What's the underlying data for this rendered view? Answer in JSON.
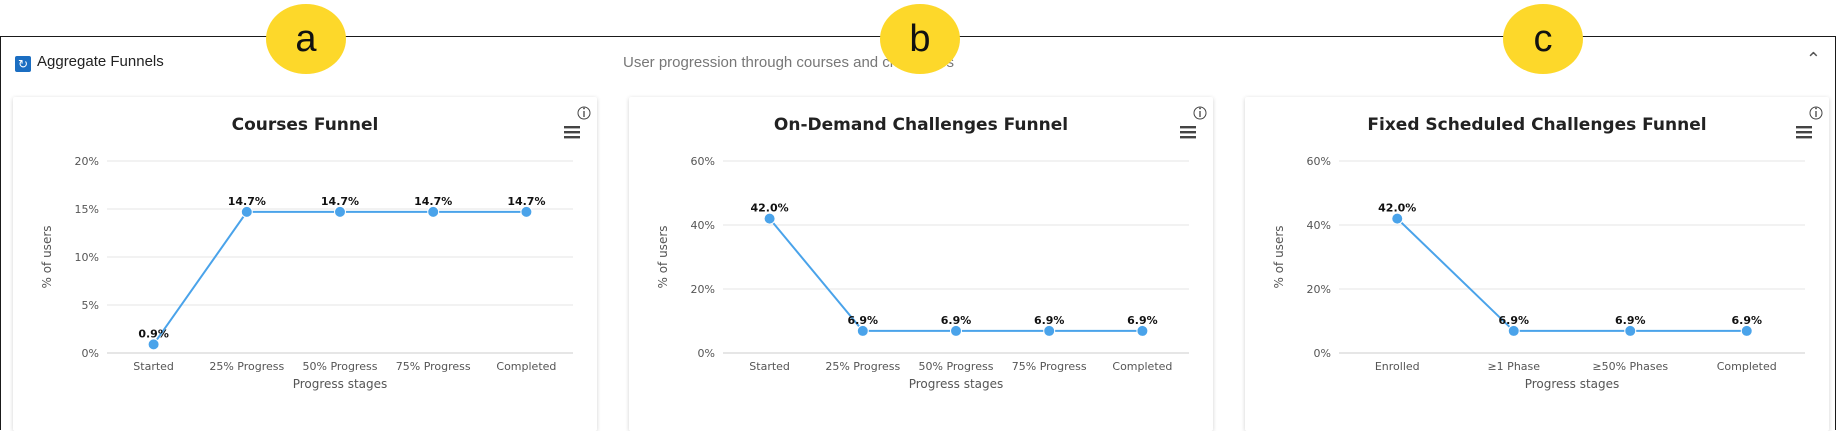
{
  "panel": {
    "title": "Aggregate Funnels",
    "subtitle": "User progression through courses and challenges",
    "icon": "refresh-icon",
    "collapse_icon": "chevron-up-icon"
  },
  "badges": [
    "a",
    "b",
    "c"
  ],
  "charts": [
    {
      "title": "Courses Funnel",
      "ylabel": "% of users",
      "xlabel": "Progress stages",
      "chart_data": {
        "type": "line",
        "title": "Courses Funnel",
        "categories": [
          "Started",
          "25% Progress",
          "50% Progress",
          "75% Progress",
          "Completed"
        ],
        "values": [
          0.9,
          14.7,
          14.7,
          14.7,
          14.7
        ],
        "labels": [
          "0.9%",
          "14.7%",
          "14.7%",
          "14.7%",
          "14.7%"
        ],
        "ylim": [
          0,
          20
        ],
        "yticks": [
          "0%",
          "5%",
          "10%",
          "15%",
          "20%"
        ],
        "ytick_values": [
          0,
          5,
          10,
          15,
          20
        ],
        "xlabel": "Progress stages",
        "ylabel": "% of users",
        "grid": true,
        "color": "#4aa3ea"
      }
    },
    {
      "title": "On-Demand Challenges Funnel",
      "ylabel": "% of users",
      "xlabel": "Progress stages",
      "chart_data": {
        "type": "line",
        "title": "On-Demand Challenges Funnel",
        "categories": [
          "Started",
          "25% Progress",
          "50% Progress",
          "75% Progress",
          "Completed"
        ],
        "values": [
          42.0,
          6.9,
          6.9,
          6.9,
          6.9
        ],
        "labels": [
          "42.0%",
          "6.9%",
          "6.9%",
          "6.9%",
          "6.9%"
        ],
        "ylim": [
          0,
          60
        ],
        "yticks": [
          "0%",
          "20%",
          "40%",
          "60%"
        ],
        "ytick_values": [
          0,
          20,
          40,
          60
        ],
        "xlabel": "Progress stages",
        "ylabel": "% of users",
        "grid": true,
        "color": "#4aa3ea"
      }
    },
    {
      "title": "Fixed Scheduled Challenges Funnel",
      "ylabel": "% of users",
      "xlabel": "Progress stages",
      "chart_data": {
        "type": "line",
        "title": "Fixed Scheduled Challenges Funnel",
        "categories": [
          "Enrolled",
          "≥1 Phase",
          "≥50% Phases",
          "Completed"
        ],
        "values": [
          42.0,
          6.9,
          6.9,
          6.9
        ],
        "labels": [
          "42.0%",
          "6.9%",
          "6.9%",
          "6.9%"
        ],
        "ylim": [
          0,
          60
        ],
        "yticks": [
          "0%",
          "20%",
          "40%",
          "60%"
        ],
        "ytick_values": [
          0,
          20,
          40,
          60
        ],
        "xlabel": "Progress stages",
        "ylabel": "% of users",
        "grid": true,
        "color": "#4aa3ea"
      }
    }
  ]
}
